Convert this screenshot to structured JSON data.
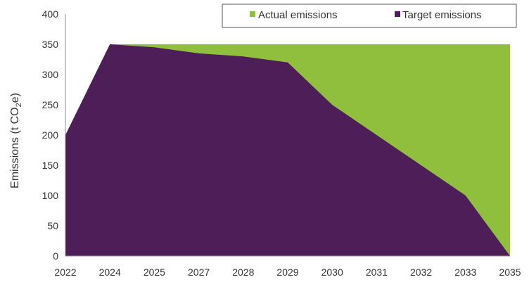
{
  "chart_data": {
    "type": "area",
    "categories": [
      "2022",
      "2024",
      "2025",
      "2027",
      "2028",
      "2029",
      "2030",
      "2031",
      "2032",
      "2033",
      "2035"
    ],
    "series": [
      {
        "name": "Actual emissions",
        "color": "#8fbf3c",
        "values": [
          200,
          350,
          350,
          350,
          350,
          350,
          350,
          350,
          350,
          350,
          350
        ]
      },
      {
        "name": "Target emissions",
        "color": "#4d1e57",
        "values": [
          200,
          350,
          345,
          335,
          330,
          320,
          250,
          200,
          150,
          100,
          0
        ]
      }
    ],
    "ylabel_main": "Emissions (t CO",
    "ylabel_sub": "2",
    "ylabel_end": "e)",
    "ylim": [
      0,
      400
    ],
    "yticks": [
      0,
      50,
      100,
      150,
      200,
      250,
      300,
      350,
      400
    ],
    "legend_position": "top-right",
    "grid": false
  }
}
